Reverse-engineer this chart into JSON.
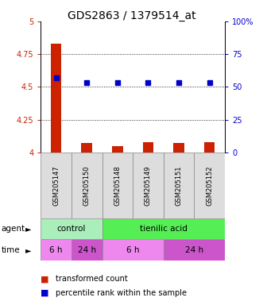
{
  "title": "GDS2863 / 1379514_at",
  "samples": [
    "GSM205147",
    "GSM205150",
    "GSM205148",
    "GSM205149",
    "GSM205151",
    "GSM205152"
  ],
  "bar_values": [
    4.83,
    4.07,
    4.05,
    4.08,
    4.07,
    4.08
  ],
  "percentile_values": [
    57,
    53,
    53,
    53,
    53,
    53
  ],
  "ylim_left": [
    4.0,
    5.0
  ],
  "ylim_right": [
    0,
    100
  ],
  "yticks_left": [
    4.0,
    4.25,
    4.5,
    4.75,
    5.0
  ],
  "ytick_labels_left": [
    "4",
    "4.25",
    "4.5",
    "4.75",
    "5"
  ],
  "yticks_right": [
    0,
    25,
    50,
    75,
    100
  ],
  "ytick_labels_right": [
    "0",
    "25",
    "50",
    "75",
    "100%"
  ],
  "hlines": [
    4.25,
    4.5,
    4.75
  ],
  "bar_color": "#cc2200",
  "dot_color": "#0000cc",
  "bar_width": 0.35,
  "sample_bg": "#dddddd",
  "agent_groups": [
    {
      "text": "control",
      "cols": [
        0,
        1
      ],
      "color": "#aaeebb"
    },
    {
      "text": "tienilic acid",
      "cols": [
        2,
        3,
        4,
        5
      ],
      "color": "#55ee55"
    }
  ],
  "time_groups": [
    {
      "text": "6 h",
      "cols": [
        0
      ],
      "color": "#ee88ee"
    },
    {
      "text": "24 h",
      "cols": [
        1
      ],
      "color": "#cc55cc"
    },
    {
      "text": "6 h",
      "cols": [
        2,
        3
      ],
      "color": "#ee88ee"
    },
    {
      "text": "24 h",
      "cols": [
        4,
        5
      ],
      "color": "#cc55cc"
    }
  ],
  "legend_bar_label": "transformed count",
  "legend_dot_label": "percentile rank within the sample",
  "left_tick_color": "#cc2200",
  "right_tick_color": "#0000cc",
  "title_fontsize": 10,
  "tick_fontsize": 7,
  "sample_fontsize": 6,
  "row_fontsize": 7.5,
  "legend_fontsize": 7
}
